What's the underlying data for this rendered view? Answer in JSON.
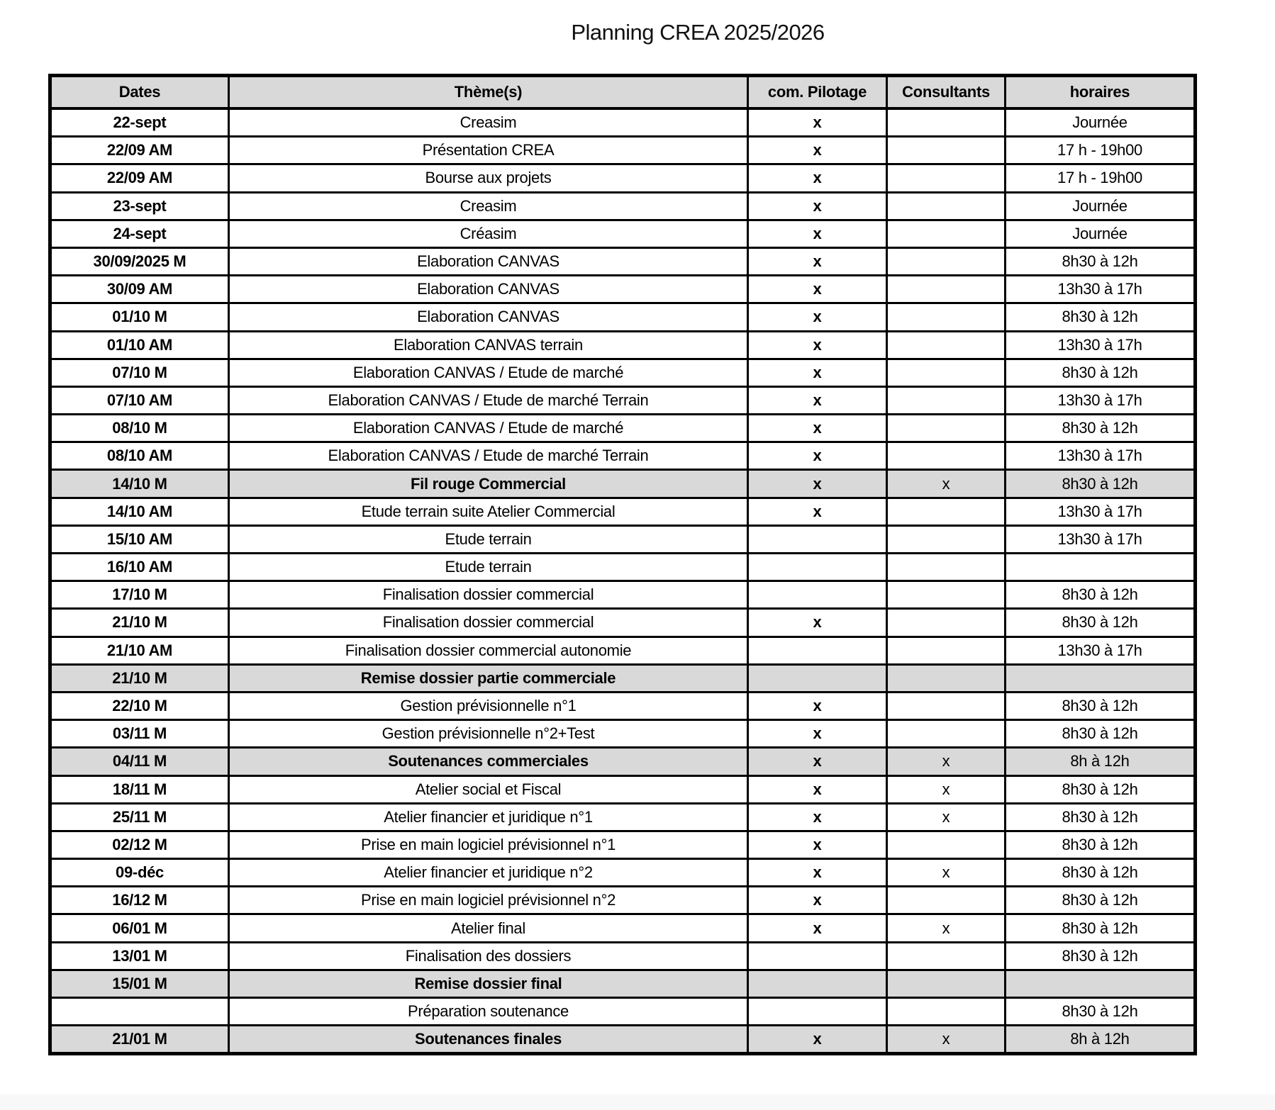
{
  "title": "Planning CREA 2025/2026",
  "colors": {
    "header_bg": "#d9d9d9",
    "highlight_row_bg": "#d9d9d9",
    "border": "#000000",
    "page_bg": "#ffffff",
    "footer_band": "#f8f8f8"
  },
  "table": {
    "headers": [
      "Dates",
      "Thème(s)",
      "com. Pilotage",
      "Consultants",
      "horaires"
    ],
    "rows": [
      {
        "date": "22-sept",
        "theme": "Creasim",
        "pilotage": "x",
        "consultants": "",
        "horaires": "Journée",
        "highlight": false
      },
      {
        "date": "22/09 AM",
        "theme": "Présentation CREA",
        "pilotage": "x",
        "consultants": "",
        "horaires": "17 h - 19h00",
        "highlight": false
      },
      {
        "date": "22/09 AM",
        "theme": "Bourse aux projets",
        "pilotage": "x",
        "consultants": "",
        "horaires": "17 h - 19h00",
        "highlight": false
      },
      {
        "date": "23-sept",
        "theme": "Creasim",
        "pilotage": "x",
        "consultants": "",
        "horaires": "Journée",
        "highlight": false
      },
      {
        "date": "24-sept",
        "theme": "Créasim",
        "pilotage": "x",
        "consultants": "",
        "horaires": "Journée",
        "highlight": false
      },
      {
        "date": "30/09/2025 M",
        "theme": "Elaboration CANVAS",
        "pilotage": "x",
        "consultants": "",
        "horaires": "8h30 à 12h",
        "highlight": false
      },
      {
        "date": "30/09 AM",
        "theme": "Elaboration CANVAS",
        "pilotage": "x",
        "consultants": "",
        "horaires": "13h30 à 17h",
        "highlight": false
      },
      {
        "date": "01/10 M",
        "theme": "Elaboration CANVAS",
        "pilotage": "x",
        "consultants": "",
        "horaires": "8h30 à 12h",
        "highlight": false
      },
      {
        "date": "01/10 AM",
        "theme": "Elaboration CANVAS terrain",
        "pilotage": "x",
        "consultants": "",
        "horaires": "13h30 à 17h",
        "highlight": false
      },
      {
        "date": "07/10 M",
        "theme": "Elaboration CANVAS / Etude de marché",
        "pilotage": "x",
        "consultants": "",
        "horaires": "8h30 à 12h",
        "highlight": false
      },
      {
        "date": "07/10 AM",
        "theme": "Elaboration CANVAS / Etude de marché Terrain",
        "pilotage": "x",
        "consultants": "",
        "horaires": "13h30 à 17h",
        "highlight": false
      },
      {
        "date": "08/10 M",
        "theme": "Elaboration CANVAS / Etude de marché",
        "pilotage": "x",
        "consultants": "",
        "horaires": "8h30 à 12h",
        "highlight": false
      },
      {
        "date": "08/10 AM",
        "theme": "Elaboration CANVAS / Etude de marché Terrain",
        "pilotage": "x",
        "consultants": "",
        "horaires": "13h30 à 17h",
        "highlight": false
      },
      {
        "date": "14/10 M",
        "theme": "Fil rouge Commercial",
        "pilotage": "x",
        "consultants": "x",
        "horaires": "8h30 à 12h",
        "highlight": true
      },
      {
        "date": "14/10 AM",
        "theme": "Etude terrain suite Atelier Commercial",
        "pilotage": "x",
        "consultants": "",
        "horaires": "13h30 à 17h",
        "highlight": false
      },
      {
        "date": "15/10 AM",
        "theme": "Etude terrain",
        "pilotage": "",
        "consultants": "",
        "horaires": "13h30 à 17h",
        "highlight": false
      },
      {
        "date": "16/10 AM",
        "theme": "Etude terrain",
        "pilotage": "",
        "consultants": "",
        "horaires": "",
        "highlight": false
      },
      {
        "date": "17/10 M",
        "theme": "Finalisation dossier commercial",
        "pilotage": "",
        "consultants": "",
        "horaires": "8h30 à 12h",
        "highlight": false
      },
      {
        "date": "21/10 M",
        "theme": "Finalisation dossier commercial",
        "pilotage": "x",
        "consultants": "",
        "horaires": "8h30 à 12h",
        "highlight": false
      },
      {
        "date": "21/10 AM",
        "theme": "Finalisation dossier commercial autonomie",
        "pilotage": "",
        "consultants": "",
        "horaires": "13h30 à 17h",
        "highlight": false
      },
      {
        "date": "21/10 M",
        "theme": "Remise dossier partie commerciale",
        "pilotage": "",
        "consultants": "",
        "horaires": "",
        "highlight": true
      },
      {
        "date": "22/10 M",
        "theme": "Gestion prévisionnelle n°1",
        "pilotage": "x",
        "consultants": "",
        "horaires": "8h30 à 12h",
        "highlight": false
      },
      {
        "date": "03/11 M",
        "theme": "Gestion prévisionnelle n°2+Test",
        "pilotage": "x",
        "consultants": "",
        "horaires": "8h30 à 12h",
        "highlight": false
      },
      {
        "date": "04/11 M",
        "theme": "Soutenances commerciales",
        "pilotage": "x",
        "consultants": "x",
        "horaires": "8h à 12h",
        "highlight": true
      },
      {
        "date": "18/11 M",
        "theme": "Atelier social et Fiscal",
        "pilotage": "x",
        "consultants": "x",
        "horaires": "8h30 à 12h",
        "highlight": false
      },
      {
        "date": "25/11 M",
        "theme": "Atelier financier et juridique n°1",
        "pilotage": "x",
        "consultants": "x",
        "horaires": "8h30 à 12h",
        "highlight": false
      },
      {
        "date": "02/12 M",
        "theme": "Prise en main logiciel prévisionnel n°1",
        "pilotage": "x",
        "consultants": "",
        "horaires": "8h30 à 12h",
        "highlight": false
      },
      {
        "date": "09-déc",
        "theme": "Atelier financier et juridique n°2",
        "pilotage": "x",
        "consultants": "x",
        "horaires": "8h30 à 12h",
        "highlight": false
      },
      {
        "date": "16/12 M",
        "theme": "Prise en main logiciel prévisionnel n°2",
        "pilotage": "x",
        "consultants": "",
        "horaires": "8h30 à 12h",
        "highlight": false
      },
      {
        "date": "06/01 M",
        "theme": "Atelier final",
        "pilotage": "x",
        "consultants": "x",
        "horaires": "8h30 à 12h",
        "highlight": false
      },
      {
        "date": "13/01 M",
        "theme": "Finalisation des dossiers",
        "pilotage": "",
        "consultants": "",
        "horaires": "8h30 à 12h",
        "highlight": false
      },
      {
        "date": "15/01 M",
        "theme": "Remise dossier final",
        "pilotage": "",
        "consultants": "",
        "horaires": "",
        "highlight": true
      },
      {
        "date": "",
        "theme": "Préparation soutenance",
        "pilotage": "",
        "consultants": "",
        "horaires": "8h30 à 12h",
        "highlight": false
      },
      {
        "date": "21/01 M",
        "theme": "Soutenances finales",
        "pilotage": "x",
        "consultants": "x",
        "horaires": "8h à 12h",
        "highlight": true
      }
    ]
  }
}
